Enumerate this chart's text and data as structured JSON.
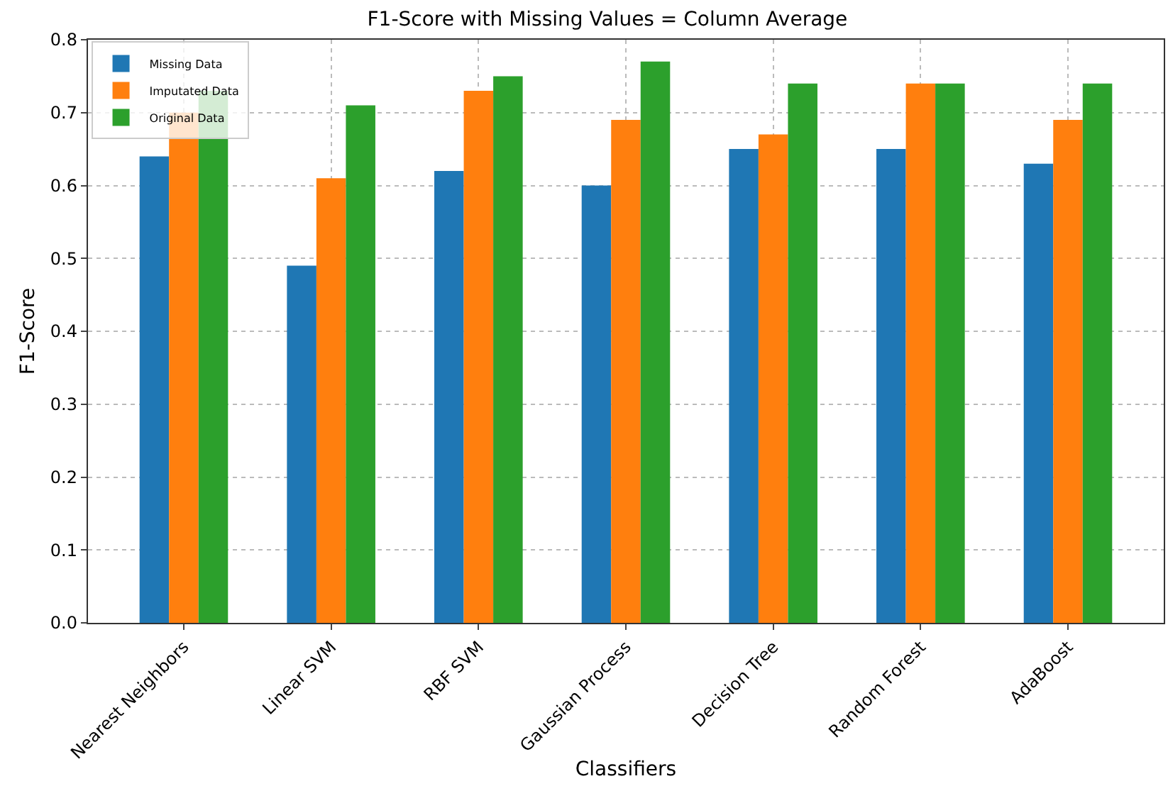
{
  "chart_data": {
    "type": "bar",
    "title": "F1-Score with Missing Values = Column Average",
    "xlabel": "Classifiers",
    "ylabel": "F1-Score",
    "categories": [
      "Nearest Neighbors",
      "Linear SVM",
      "RBF SVM",
      "Gaussian Process",
      "Decision Tree",
      "Random Forest",
      "AdaBoost"
    ],
    "series": [
      {
        "name": "Missing Data",
        "color": "#1f77b4",
        "values": [
          0.64,
          0.49,
          0.62,
          0.6,
          0.65,
          0.65,
          0.63
        ]
      },
      {
        "name": "Imputated Data",
        "color": "#ff7f0e",
        "values": [
          0.7,
          0.61,
          0.73,
          0.69,
          0.67,
          0.74,
          0.69
        ]
      },
      {
        "name": "Original Data",
        "color": "#2ca02c",
        "values": [
          0.73,
          0.71,
          0.75,
          0.77,
          0.74,
          0.74,
          0.74
        ]
      }
    ],
    "ylim": [
      0,
      0.8
    ],
    "yticks": [
      {
        "value": 0,
        "label": "0.0"
      },
      0.1,
      0.2,
      0.3,
      0.4,
      0.5,
      0.6,
      0.7,
      0.8
    ],
    "grid": true,
    "legend": "top left"
  }
}
